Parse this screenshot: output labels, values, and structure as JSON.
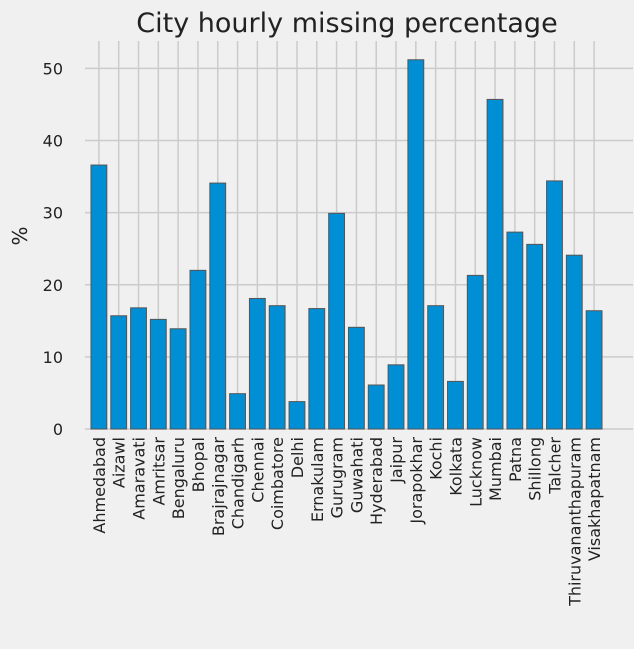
{
  "chart_data": {
    "type": "bar",
    "title": "City hourly missing percentage",
    "xlabel": "",
    "ylabel": "%",
    "ylim": [
      0,
      53.8
    ],
    "yticks": [
      0,
      10,
      20,
      30,
      40,
      50
    ],
    "grid": true,
    "bar_color": "#008fd5",
    "bar_edge_color": "#555555",
    "background_color": "#f0f0f0",
    "grid_color": "#cbcbcb",
    "categories": [
      "Ahmedabad",
      "Aizawl",
      "Amaravati",
      "Amritsar",
      "Bengaluru",
      "Bhopal",
      "Brajrajnagar",
      "Chandigarh",
      "Chennai",
      "Coimbatore",
      "Delhi",
      "Ernakulam",
      "Gurugram",
      "Guwahati",
      "Hyderabad",
      "Jaipur",
      "Jorapokhar",
      "Kochi",
      "Kolkata",
      "Lucknow",
      "Mumbai",
      "Patna",
      "Shillong",
      "Talcher",
      "Thiruvananthapuram",
      "Visakhapatnam"
    ],
    "values": [
      36.6,
      15.7,
      16.8,
      15.2,
      13.9,
      22.0,
      34.1,
      4.9,
      18.1,
      17.1,
      3.8,
      16.7,
      29.9,
      14.1,
      6.1,
      8.9,
      51.2,
      17.1,
      6.6,
      21.3,
      45.7,
      27.3,
      25.6,
      34.4,
      24.1,
      16.4
    ]
  }
}
